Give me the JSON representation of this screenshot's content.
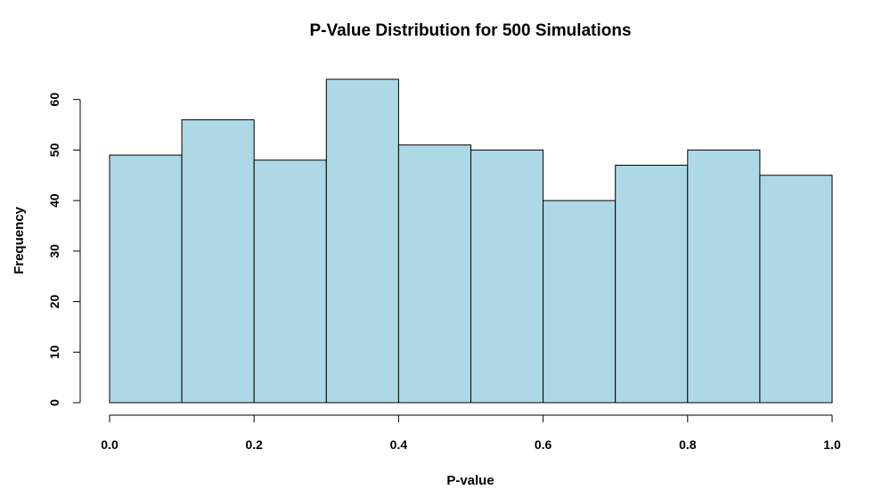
{
  "chart_data": {
    "type": "bar",
    "title": "P-Value Distribution for 500 Simulations",
    "xlabel": "P-value",
    "ylabel": "Frequency",
    "bins": [
      {
        "start": 0.0,
        "end": 0.1,
        "count": 49
      },
      {
        "start": 0.1,
        "end": 0.2,
        "count": 56
      },
      {
        "start": 0.2,
        "end": 0.3,
        "count": 48
      },
      {
        "start": 0.3,
        "end": 0.4,
        "count": 64
      },
      {
        "start": 0.4,
        "end": 0.5,
        "count": 51
      },
      {
        "start": 0.5,
        "end": 0.6,
        "count": 50
      },
      {
        "start": 0.6,
        "end": 0.7,
        "count": 40
      },
      {
        "start": 0.7,
        "end": 0.8,
        "count": 47
      },
      {
        "start": 0.8,
        "end": 0.9,
        "count": 50
      },
      {
        "start": 0.9,
        "end": 1.0,
        "count": 45
      }
    ],
    "xlim": [
      0,
      1
    ],
    "ylim": [
      0,
      64
    ],
    "xticks": [
      0.0,
      0.2,
      0.4,
      0.6,
      0.8,
      1.0
    ],
    "xtick_labels": [
      "0.0",
      "0.2",
      "0.4",
      "0.6",
      "0.8",
      "1.0"
    ],
    "yticks": [
      0,
      10,
      20,
      30,
      40,
      50,
      60
    ],
    "ytick_labels": [
      "0",
      "10",
      "20",
      "30",
      "40",
      "50",
      "60"
    ],
    "bar_color": "#add8e6",
    "grid": false
  }
}
